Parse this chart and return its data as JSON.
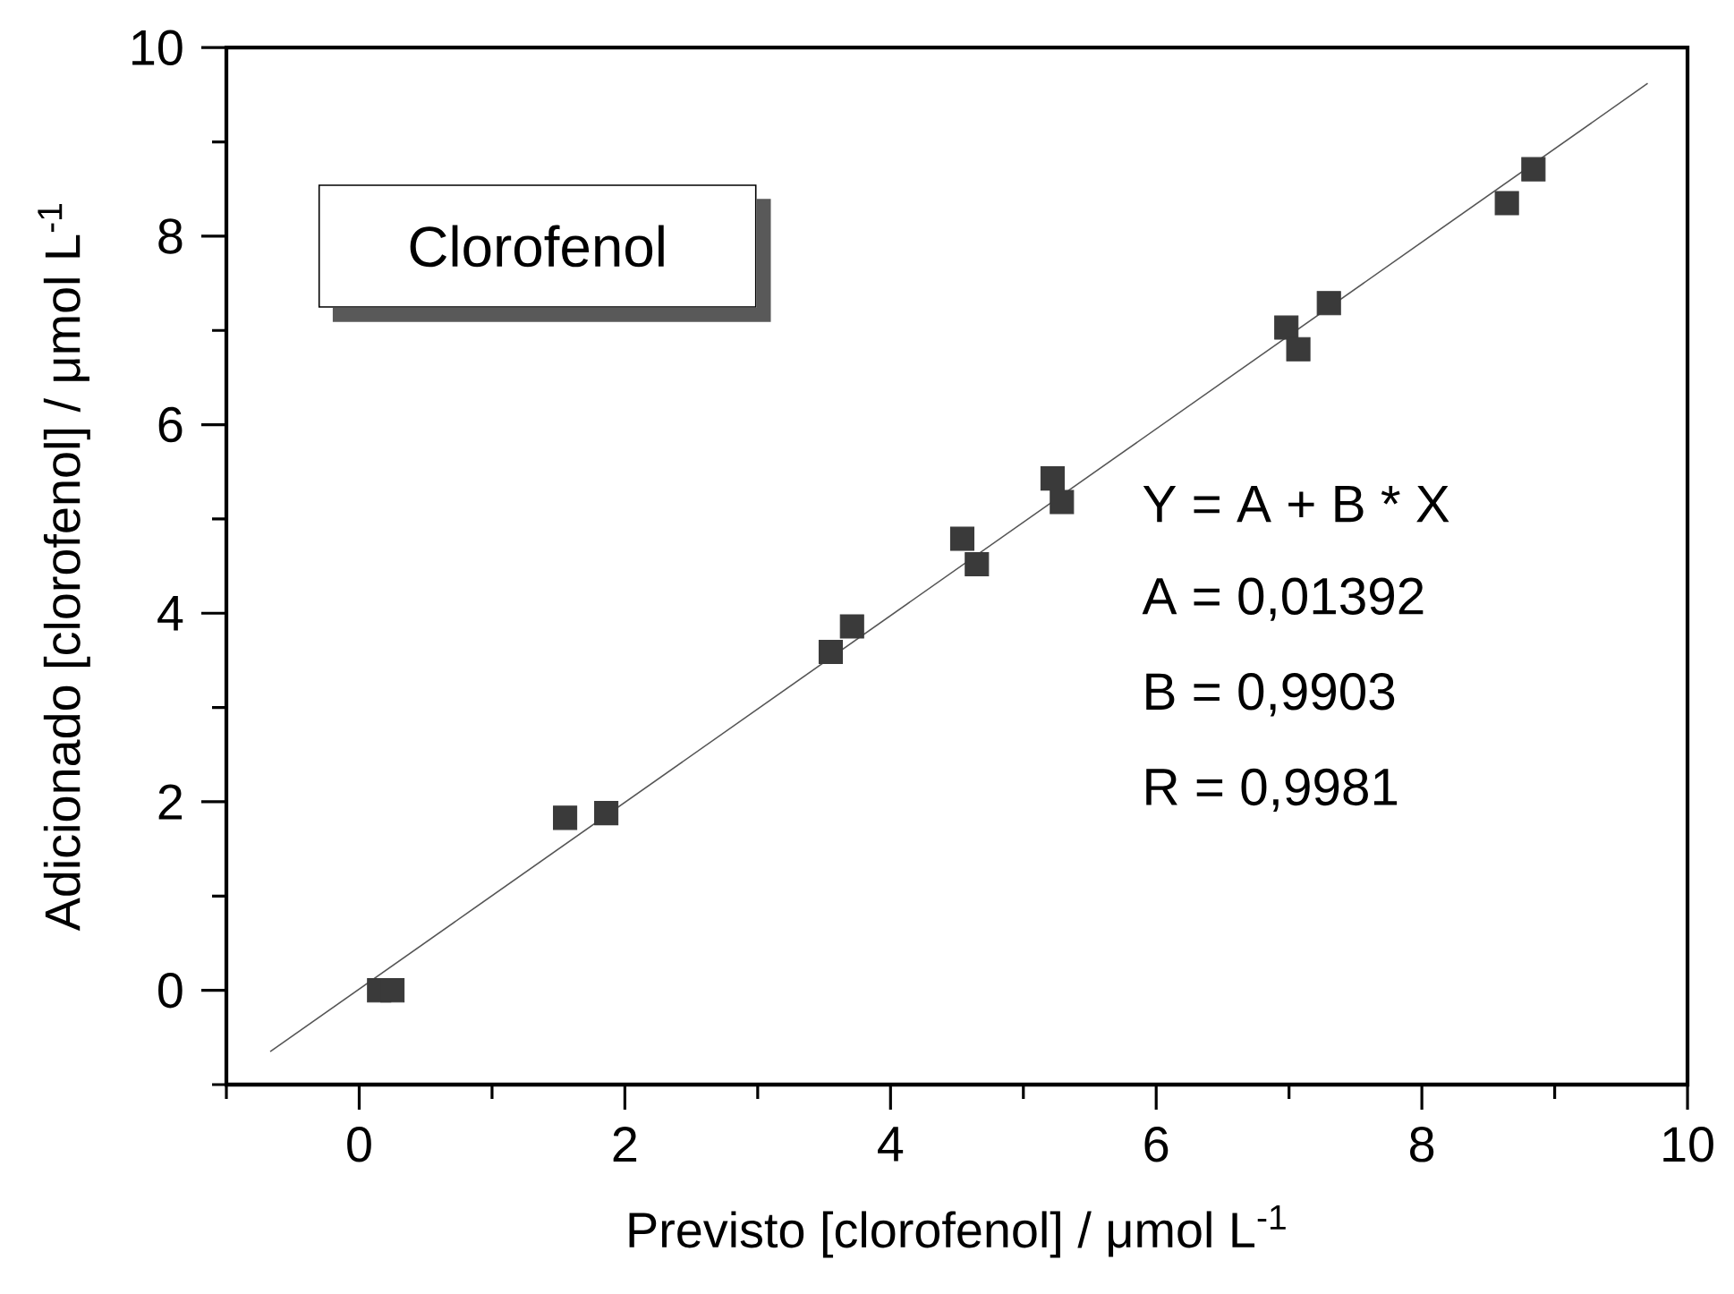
{
  "chart_data": {
    "type": "scatter",
    "xlabel": "Previsto [clorofenol] / μmol L$^{-1}$",
    "ylabel": "Adicionado [clorofenol] / μmol L$^{-1}$",
    "annotations": [
      "Clorofenol",
      "Y = A + B * X",
      "A = 0,01392",
      "B = 0,9903",
      "R = 0,9981"
    ],
    "xlim": [
      -1,
      10
    ],
    "ylim": [
      -1,
      10
    ],
    "xticks": [
      {
        "value": -1,
        "label": null
      },
      0,
      {
        "value": 1,
        "label": null
      },
      2,
      {
        "value": 3,
        "label": null
      },
      4,
      {
        "value": 5,
        "label": null
      },
      6,
      {
        "value": 7,
        "label": null
      },
      8,
      {
        "value": 9,
        "label": null
      },
      10
    ],
    "yticks": [
      {
        "value": -1,
        "label": null
      },
      0,
      {
        "value": 1,
        "label": null
      },
      2,
      {
        "value": 3,
        "label": null
      },
      4,
      {
        "value": 5,
        "label": null
      },
      6,
      {
        "value": 7,
        "label": null
      },
      8,
      {
        "value": 9,
        "label": null
      },
      10
    ],
    "grid": false,
    "series": [
      {
        "type": "scatter",
        "marker": "square",
        "color": "#3a3a3a",
        "x": [
          0.15,
          0.25,
          1.55,
          1.86,
          3.55,
          3.71,
          4.54,
          4.65,
          5.22,
          5.29,
          6.98,
          7.07,
          7.3,
          8.64,
          8.84
        ],
        "values": [
          0,
          0,
          1.83,
          1.88,
          3.59,
          3.86,
          4.79,
          4.52,
          5.43,
          5.18,
          7.03,
          6.8,
          7.29,
          8.35,
          8.71
        ]
      },
      {
        "type": "line",
        "marker": "none",
        "line_style": "solid",
        "color": "#555555",
        "x": [
          -0.67,
          9.7
        ],
        "values": [
          -0.65,
          9.62
        ]
      }
    ]
  }
}
